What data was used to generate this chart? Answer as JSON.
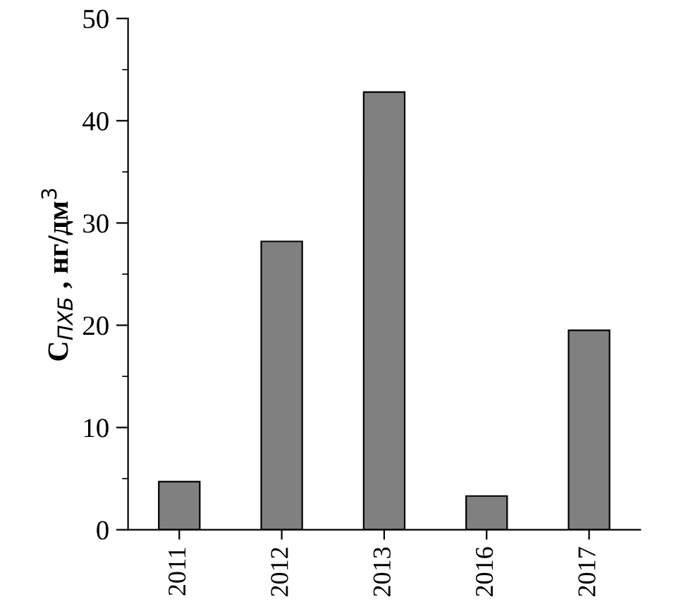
{
  "chart_data": {
    "type": "bar",
    "ylabel": "C$_{ПХБ}$ , нг/дм$^{3}$",
    "categories": [
      "2011",
      "2012",
      "2013",
      "2016",
      "2017"
    ],
    "values": [
      4.7,
      28.2,
      42.8,
      3.3,
      19.5
    ],
    "color": "#808080",
    "ylim": [
      0,
      50
    ],
    "yticks": [
      0,
      {
        "value": 5,
        "label": null
      },
      10,
      {
        "value": 15,
        "label": null
      },
      20,
      {
        "value": 25,
        "label": null
      },
      30,
      {
        "value": 35,
        "label": null
      },
      40,
      {
        "value": 45,
        "label": null
      },
      50
    ],
    "grid": false
  }
}
